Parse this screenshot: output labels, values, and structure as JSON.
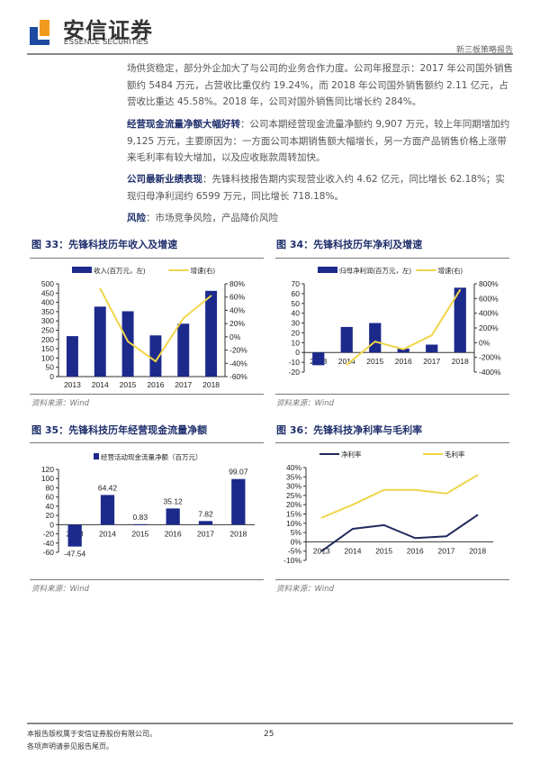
{
  "header": {
    "brand_cn": "安信证券",
    "brand_en": "ESSENCE SECURITIES",
    "report_type": "新三板策略报告"
  },
  "body": {
    "p1": "场供货稳定，部分外企加大了与公司的业务合作力度。公司年报显示：2017 年公司国外销售额约 5484 万元，占营收比重仅约 19.24%，而 2018 年公司国外销售额约 2.11 亿元，占营收比重达 45.58%。2018 年，公司对国外销售同比增长约 284%。",
    "p2_head": "经营现金流量净额大幅好转",
    "p2": "：公司本期经营现金流量净额约 9,907 万元，较上年同期增加约 9,125 万元，主要原因为：一方面公司本期销售额大幅增长，另一方面产品销售价格上涨带来毛利率有较大增加，以及应收账款周转加快。",
    "p3_head": "公司最新业绩表现",
    "p3": "：先锋科技报告期内实现营业收入约 4.62 亿元，同比增长 62.18%；实现归母净利润约 6599 万元，同比增长 718.18%。",
    "p4_head": "风险",
    "p4": "：市场竞争风险，产品降价风险"
  },
  "figures": [
    {
      "title": "图 33：先锋科技历年收入及增速",
      "source": "资料来源：Wind"
    },
    {
      "title": "图 34：先锋科技历年净利及增速",
      "source": "资料来源：Wind"
    },
    {
      "title": "图 35：先锋科技历年经营现金流量净额",
      "source": "资料来源：Wind"
    },
    {
      "title": "图 36：先锋科技净利率与毛利率",
      "source": "资料来源：Wind"
    }
  ],
  "chart_data": [
    {
      "type": "bar",
      "categories": [
        "2013",
        "2014",
        "2015",
        "2016",
        "2017",
        "2018"
      ],
      "series": [
        {
          "name": "收入(百万元，左)",
          "kind": "bar",
          "axis": "left",
          "values": [
            218,
            377,
            352,
            222,
            285,
            462
          ]
        },
        {
          "name": "增速(右)",
          "kind": "line",
          "axis": "right",
          "values": [
            null,
            73,
            -7,
            -37,
            28,
            62
          ]
        }
      ],
      "ylim": [
        0,
        500
      ],
      "yticks": [
        0,
        50,
        100,
        150,
        200,
        250,
        300,
        350,
        400,
        450,
        500
      ],
      "y2lim": [
        -60,
        80
      ],
      "y2ticks": [
        -60,
        -40,
        -20,
        0,
        20,
        40,
        60,
        80
      ],
      "y2suffix": "%",
      "legend": "top"
    },
    {
      "type": "bar",
      "categories": [
        "2013",
        "2014",
        "2015",
        "2016",
        "2017",
        "2018"
      ],
      "series": [
        {
          "name": "归母净利润(百万元，左)",
          "kind": "bar",
          "axis": "left",
          "values": [
            -13,
            26,
            30,
            4,
            8,
            66
          ]
        },
        {
          "name": "增速(右)",
          "kind": "line",
          "axis": "right",
          "values": [
            null,
            -300,
            15,
            -90,
            100,
            718
          ]
        }
      ],
      "ylim": [
        -20,
        70
      ],
      "yticks": [
        -20,
        -10,
        0,
        10,
        20,
        30,
        40,
        50,
        60,
        70
      ],
      "y2lim": [
        -400,
        800
      ],
      "y2ticks": [
        -400,
        -200,
        0,
        200,
        400,
        600,
        800
      ],
      "y2suffix": "%",
      "legend": "top"
    },
    {
      "type": "bar",
      "categories": [
        "2013",
        "2014",
        "2015",
        "2016",
        "2017",
        "2018"
      ],
      "series": [
        {
          "name": "经营活动现金流量净额（百万元）",
          "kind": "bar",
          "axis": "left",
          "values": [
            -47.54,
            64.42,
            0.83,
            35.12,
            7.82,
            99.07
          ],
          "labels": [
            "-47.54",
            "64.42",
            "0.83",
            "35.12",
            "7.82",
            "99.07"
          ]
        }
      ],
      "ylim": [
        -60,
        120
      ],
      "yticks": [
        -60,
        -40,
        -20,
        0,
        20,
        40,
        60,
        80,
        100,
        120
      ],
      "legend": "top"
    },
    {
      "type": "line",
      "categories": [
        "2013",
        "2014",
        "2015",
        "2016",
        "2017",
        "2018"
      ],
      "series": [
        {
          "name": "净利率",
          "kind": "line",
          "axis": "left",
          "color": "#1f2a5c",
          "values": [
            -5,
            7,
            9,
            2,
            3,
            14.5
          ]
        },
        {
          "name": "毛利率",
          "kind": "line",
          "axis": "left",
          "color": "#f0d54a",
          "values": [
            13,
            20,
            28,
            28,
            26,
            36
          ]
        }
      ],
      "ylim": [
        -10,
        40
      ],
      "yticks": [
        -10,
        -5,
        0,
        5,
        10,
        15,
        20,
        25,
        30,
        35,
        40
      ],
      "ysuffix": "%",
      "legend": "top"
    }
  ],
  "colors": {
    "bar": "#1c2a8c",
    "line": "#f0d54a",
    "navy": "#1f2f6b"
  },
  "footer": {
    "line1": "本报告版权属于安信证券股份有限公司。",
    "line2": "各项声明请参见报告尾页。",
    "page": "25"
  }
}
